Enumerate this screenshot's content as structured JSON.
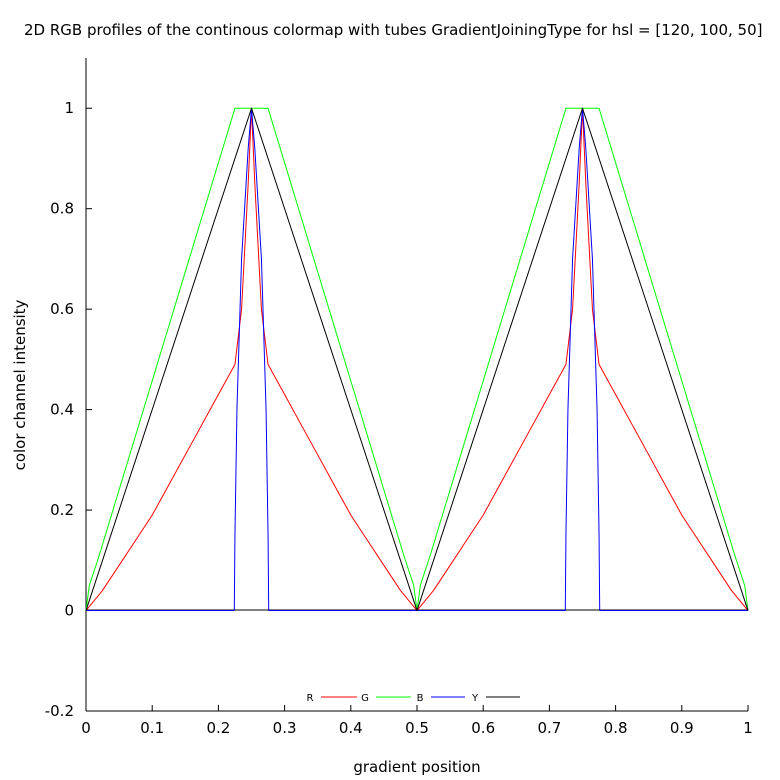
{
  "chart_data": {
    "type": "line",
    "title": "2D RGB profiles of the continous colormap with tubes GradientJoiningType for hsl = [120, 100, 50]",
    "xlabel": "gradient position",
    "ylabel": "color channel intensity",
    "xlim": [
      0,
      1
    ],
    "ylim": [
      -0.2,
      1.1
    ],
    "xticks": [
      0,
      0.1,
      0.2,
      0.3,
      0.4,
      0.5,
      0.6,
      0.7,
      0.8,
      0.9,
      1
    ],
    "xtick_labels": [
      "0",
      "0.1",
      "0.2",
      "0.3",
      "0.4",
      "0.5",
      "0.6",
      "0.7",
      "0.8",
      "0.9",
      "1"
    ],
    "yticks": [
      -0.2,
      0,
      0.2,
      0.4,
      0.6,
      0.8,
      1
    ],
    "ytick_labels": [
      "-0.2",
      "0",
      "0.2",
      "0.4",
      "0.6",
      "0.8",
      "1"
    ],
    "grid": false,
    "legend_position": "bottom-center",
    "series": [
      {
        "name": "R",
        "color": "#ff0000",
        "x": [
          0,
          0.025,
          0.05,
          0.075,
          0.1,
          0.125,
          0.15,
          0.175,
          0.2,
          0.225,
          0.235,
          0.245,
          0.25,
          0.255,
          0.265,
          0.275,
          0.3,
          0.325,
          0.35,
          0.375,
          0.4,
          0.425,
          0.45,
          0.475,
          0.5,
          0.525,
          0.55,
          0.575,
          0.6,
          0.625,
          0.65,
          0.675,
          0.7,
          0.725,
          0.735,
          0.745,
          0.75,
          0.755,
          0.765,
          0.775,
          0.8,
          0.825,
          0.85,
          0.875,
          0.9,
          0.925,
          0.95,
          0.975,
          1
        ],
        "y": [
          0,
          0.04,
          0.09,
          0.14,
          0.19,
          0.25,
          0.31,
          0.37,
          0.43,
          0.49,
          0.6,
          0.85,
          1,
          0.85,
          0.6,
          0.49,
          0.43,
          0.37,
          0.31,
          0.25,
          0.19,
          0.14,
          0.09,
          0.04,
          0,
          0.04,
          0.09,
          0.14,
          0.19,
          0.25,
          0.31,
          0.37,
          0.43,
          0.49,
          0.6,
          0.85,
          1,
          0.85,
          0.6,
          0.49,
          0.43,
          0.37,
          0.31,
          0.25,
          0.19,
          0.14,
          0.09,
          0.04,
          0
        ]
      },
      {
        "name": "G",
        "color": "#00ff00",
        "x": [
          0,
          0.005,
          0.02,
          0.225,
          0.275,
          0.48,
          0.495,
          0.5,
          0.505,
          0.52,
          0.725,
          0.775,
          0.98,
          0.995,
          1
        ],
        "y": [
          0,
          0.05,
          0.11,
          1,
          1,
          0.11,
          0.05,
          0,
          0.05,
          0.11,
          1,
          1,
          0.11,
          0.05,
          0
        ]
      },
      {
        "name": "B",
        "color": "#0000ff",
        "x": [
          0,
          0.224,
          0.225,
          0.228,
          0.235,
          0.245,
          0.25,
          0.255,
          0.265,
          0.272,
          0.275,
          0.276,
          0.5,
          0.724,
          0.725,
          0.728,
          0.735,
          0.745,
          0.75,
          0.755,
          0.765,
          0.772,
          0.775,
          0.776,
          1
        ],
        "y": [
          0,
          0,
          0.15,
          0.4,
          0.7,
          0.92,
          1,
          0.92,
          0.7,
          0.4,
          0.15,
          0,
          0,
          0,
          0.15,
          0.4,
          0.7,
          0.92,
          1,
          0.92,
          0.7,
          0.4,
          0.15,
          0,
          0
        ]
      },
      {
        "name": "Y",
        "color": "#000000",
        "x": [
          0,
          0.25,
          0.5,
          0.75,
          1
        ],
        "y": [
          0,
          1,
          0,
          1,
          0
        ]
      }
    ]
  }
}
